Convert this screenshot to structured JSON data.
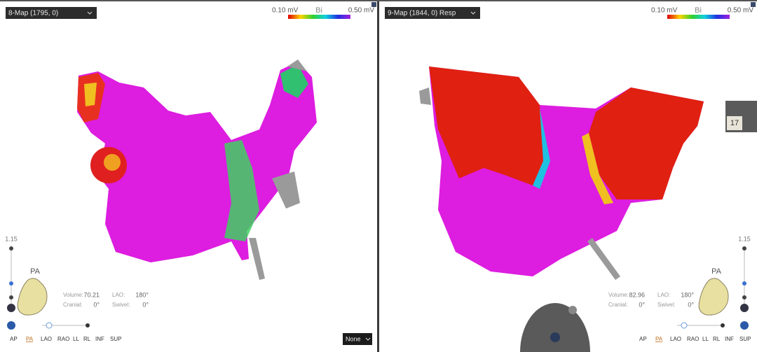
{
  "panels": [
    {
      "map_label": "8-Map (1795, 0)",
      "scale": {
        "min": "0.10 mV",
        "name": "Bi",
        "max": "0.50 mV"
      },
      "zoom": "1.15",
      "orientation": "PA",
      "stats": [
        {
          "label": "Volume:",
          "value": "70.21"
        },
        {
          "label": "LAO:",
          "value": "180°"
        },
        {
          "label": "Cranial:",
          "value": "0°"
        },
        {
          "label": "Swivel:",
          "value": "0°"
        }
      ],
      "view_buttons": [
        "AP",
        "PA",
        "LAO",
        "RAO",
        "LL",
        "RL",
        "INF",
        "SUP"
      ],
      "dropdown": "None"
    },
    {
      "map_label": "9-Map (1844, 0) Resp",
      "scale": {
        "min": "0.10 mV",
        "name": "Bi",
        "max": "0.50 mV"
      },
      "zoom": "1.15",
      "orientation": "PA",
      "stats": [
        {
          "label": "Volume:",
          "value": "82.96"
        },
        {
          "label": "LAO:",
          "value": "180°"
        },
        {
          "label": "Cranial:",
          "value": "0°"
        },
        {
          "label": "Swivel:",
          "value": "0°"
        }
      ],
      "view_buttons": [
        "AP",
        "PA",
        "LAO",
        "RAO",
        "LL",
        "RL",
        "INF",
        "SUP"
      ],
      "tab_number": "17"
    }
  ]
}
